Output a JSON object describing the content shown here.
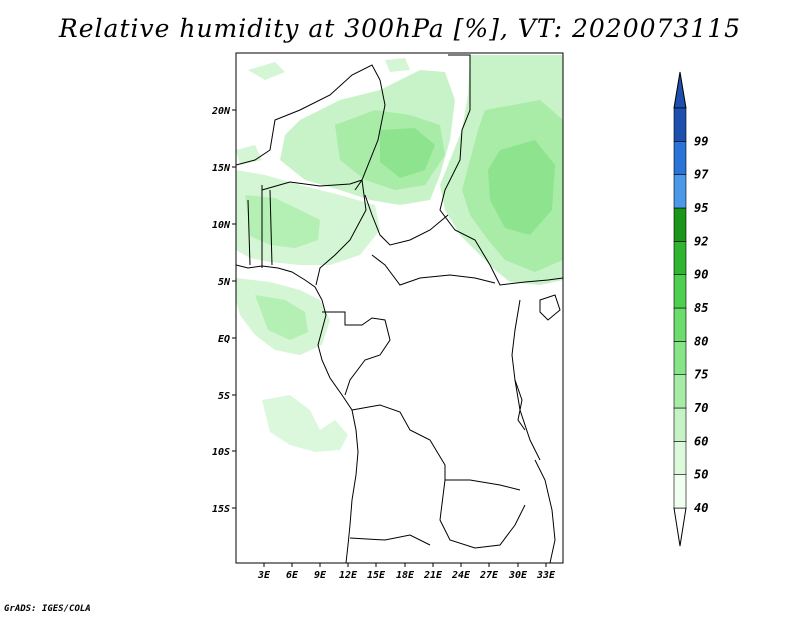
{
  "title": "Relative humidity at 300hPa [%], VT: 2020073115",
  "credit": "GrADS: IGES/COLA",
  "lat_labels": [
    "20N",
    "15N",
    "10N",
    "5N",
    "EQ",
    "5S",
    "10S",
    "15S"
  ],
  "lon_labels": [
    "3E",
    "6E",
    "9E",
    "12E",
    "15E",
    "18E",
    "21E",
    "24E",
    "27E",
    "30E",
    "33E"
  ],
  "colorbar": {
    "labels": [
      "40",
      "50",
      "60",
      "70",
      "75",
      "80",
      "85",
      "90",
      "92",
      "95",
      "97",
      "99"
    ],
    "colors": [
      "#f0fff0",
      "#dcf9dc",
      "#c6f3c6",
      "#a6eca6",
      "#88e488",
      "#6cdc6c",
      "#4fcf4f",
      "#2fb52f",
      "#1a961a",
      "#4c98e8",
      "#2a74d8",
      "#1d4fae"
    ]
  }
}
